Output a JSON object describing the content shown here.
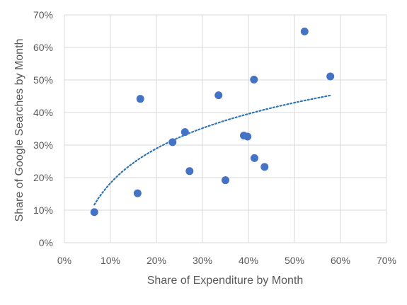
{
  "chart_data": {
    "type": "scatter",
    "xlabel": "Share of Expenditure by Month",
    "ylabel": "Share of Google Searches by Month",
    "xlim": [
      0,
      70
    ],
    "ylim": [
      0,
      70
    ],
    "x_ticks": [
      "0%",
      "10%",
      "20%",
      "30%",
      "40%",
      "50%",
      "60%",
      "70%"
    ],
    "y_ticks": [
      "0%",
      "10%",
      "20%",
      "30%",
      "40%",
      "50%",
      "60%",
      "70%"
    ],
    "tick_step": 10,
    "grid": true,
    "legend": "none",
    "point_color": "#4472C4",
    "trendline_color": "#2E75B6",
    "trendline": {
      "type": "logarithmic",
      "x_range": [
        6.5,
        58
      ],
      "start": [
        6.5,
        11.7
      ],
      "end": [
        58,
        45.3
      ]
    },
    "points": [
      {
        "x": 6.5,
        "y": 9.4
      },
      {
        "x": 15.9,
        "y": 15.2
      },
      {
        "x": 16.5,
        "y": 44.2
      },
      {
        "x": 23.5,
        "y": 30.9
      },
      {
        "x": 26.2,
        "y": 34.0
      },
      {
        "x": 27.2,
        "y": 22.0
      },
      {
        "x": 33.5,
        "y": 45.3
      },
      {
        "x": 35.0,
        "y": 19.2
      },
      {
        "x": 39.0,
        "y": 32.9
      },
      {
        "x": 39.8,
        "y": 32.6
      },
      {
        "x": 41.2,
        "y": 50.1
      },
      {
        "x": 41.3,
        "y": 26.0
      },
      {
        "x": 43.5,
        "y": 23.3
      },
      {
        "x": 52.2,
        "y": 64.9
      },
      {
        "x": 57.8,
        "y": 51.1
      }
    ]
  }
}
